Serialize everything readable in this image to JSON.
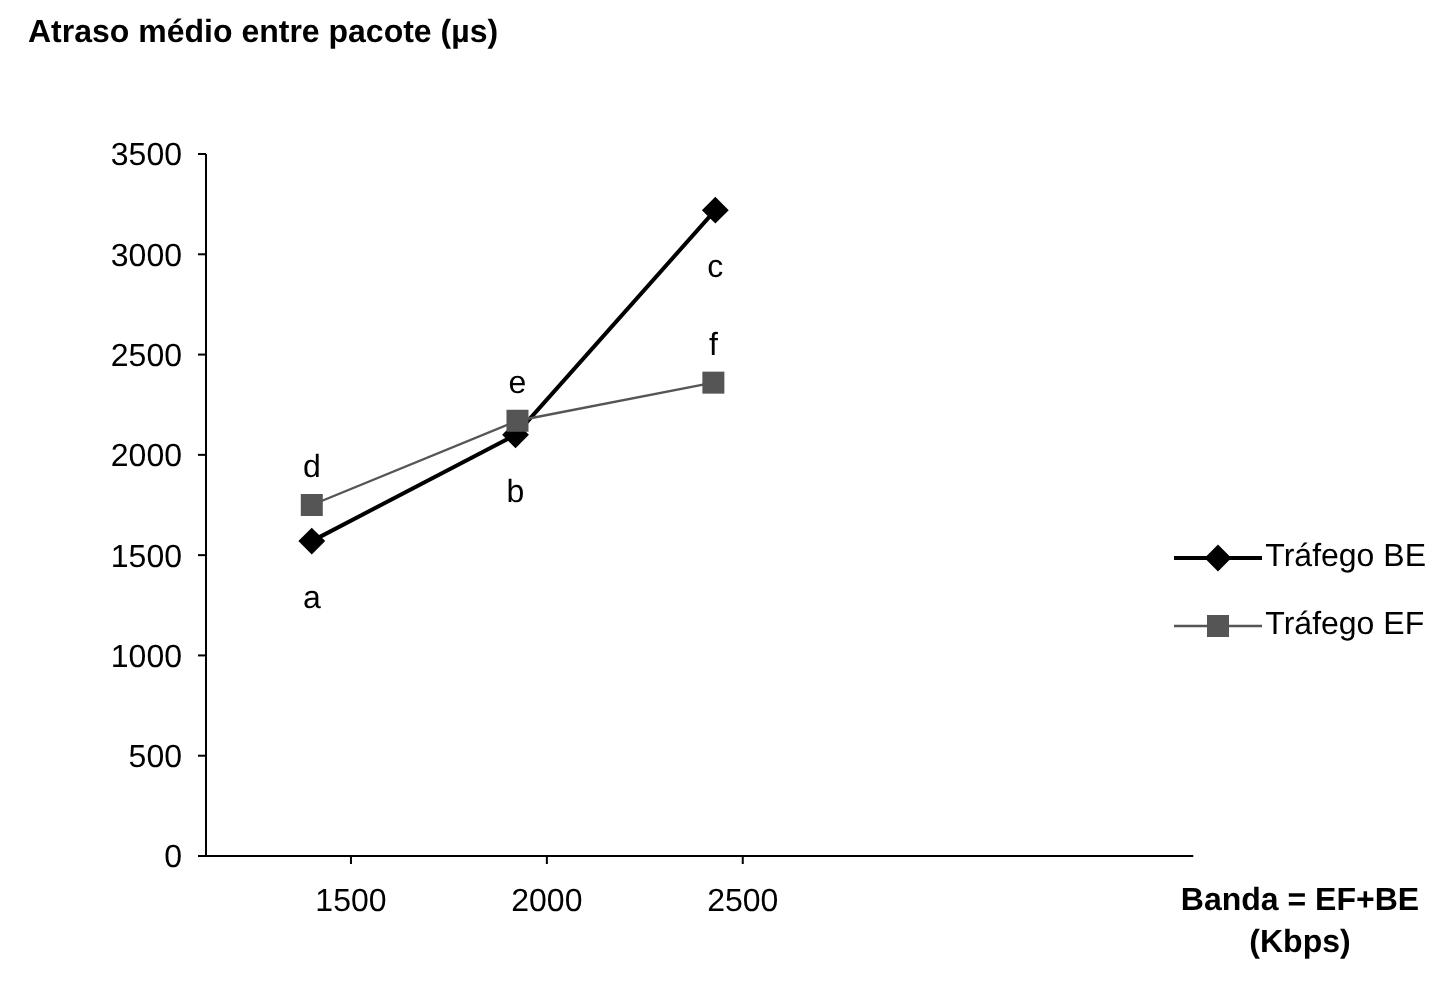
{
  "chart_data": {
    "type": "line",
    "ylabel": "Atraso médio entre pacote (µs)",
    "xlabel": "Banda = EF+BE (Kbps)",
    "xlim": [
      1130,
      3650
    ],
    "xticks": [
      1500,
      2000,
      2500
    ],
    "ylim": [
      0,
      3500
    ],
    "yticks": [
      0,
      500,
      1000,
      1500,
      2000,
      2500,
      3000,
      3500
    ],
    "grid": false,
    "legend": "right",
    "series": [
      {
        "name": "Tráfego BE",
        "color": "#000000",
        "marker": "diamond",
        "x": [
          1400,
          1920,
          2430
        ],
        "values": [
          1570,
          2100,
          3220
        ]
      },
      {
        "name": "Tráfego EF",
        "color": "#555555",
        "marker": "square",
        "x": [
          1400,
          1925,
          2425
        ],
        "values": [
          1750,
          2170,
          2360
        ]
      }
    ],
    "annotations": [
      {
        "text": "a",
        "x": 1400,
        "y": 1570
      },
      {
        "text": "b",
        "x": 1920,
        "y": 2100
      },
      {
        "text": "c",
        "x": 2430,
        "y": 3220
      },
      {
        "text": "d",
        "x": 1400,
        "y": 1750
      },
      {
        "text": "e",
        "x": 1925,
        "y": 2170
      },
      {
        "text": "f",
        "x": 2425,
        "y": 2360
      }
    ]
  }
}
